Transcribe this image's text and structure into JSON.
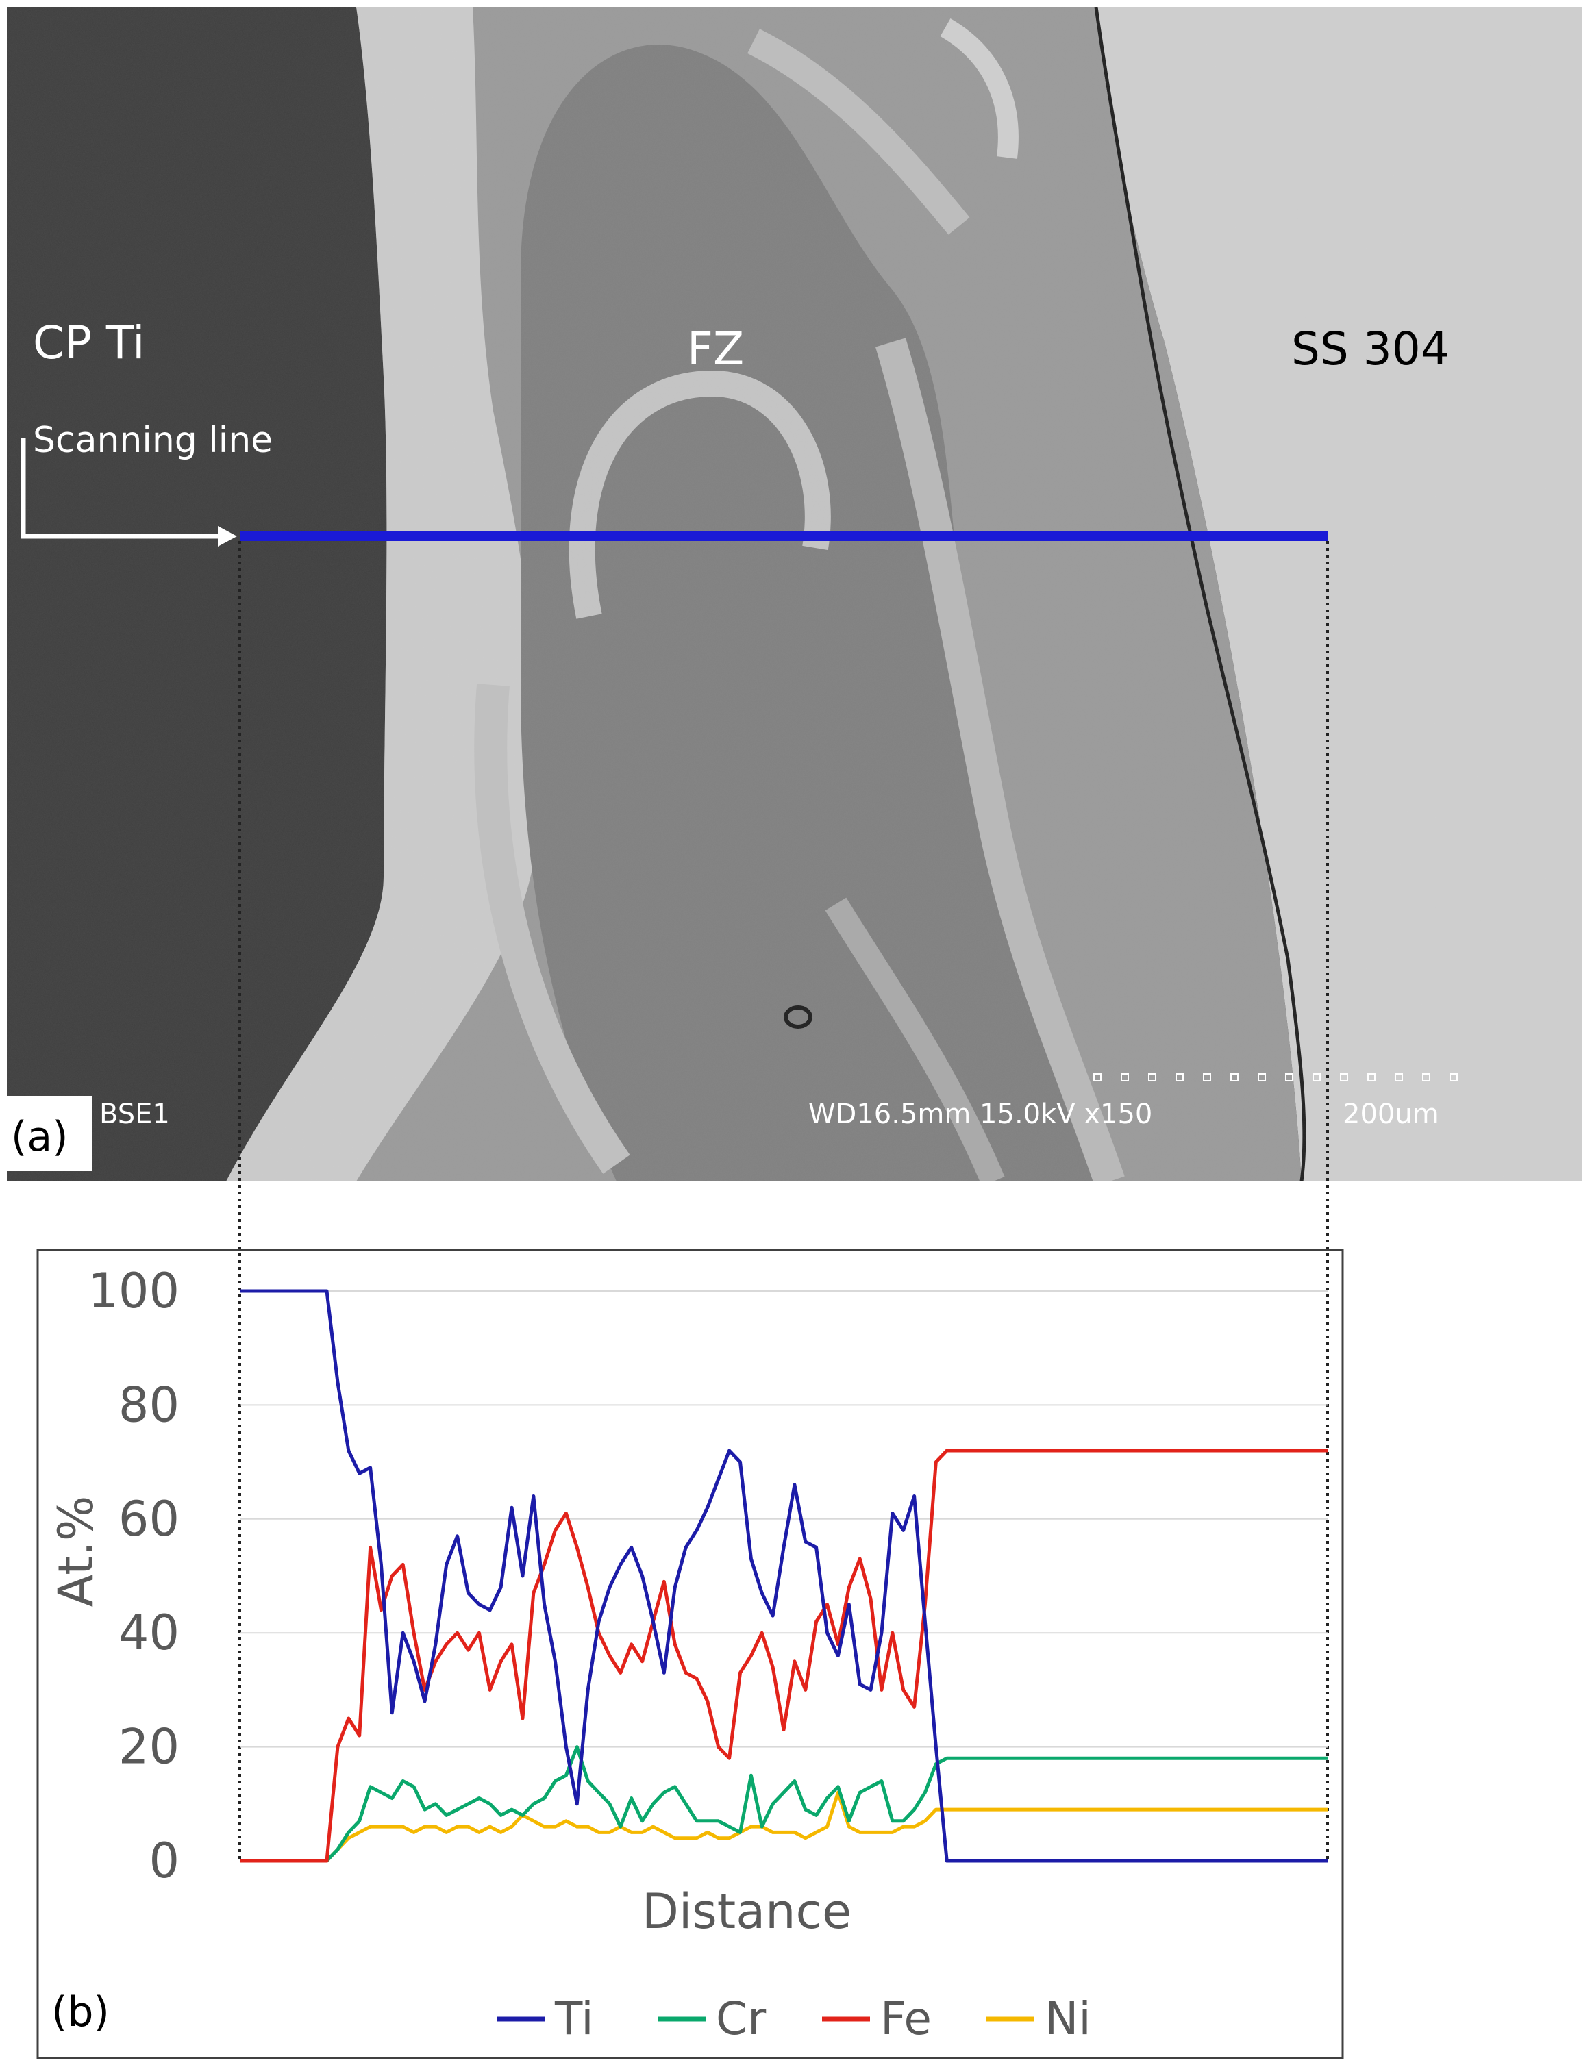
{
  "micrograph": {
    "panel_label": "(a)",
    "region_labels": [
      "CP Ti",
      "FZ",
      "SS 304"
    ],
    "scan_label": "Scanning line",
    "detector": "BSE1",
    "info_bar": "WD16.5mm 15.0kV x150",
    "scale_bar": "200um",
    "colors": {
      "scan_line": "#1a1ad6",
      "arrow": "#ffffff"
    }
  },
  "chart_data": {
    "type": "line",
    "panel_label": "(b)",
    "xlabel": "Distance",
    "ylabel": "At.%",
    "ylim": [
      0,
      100
    ],
    "yticks": [
      "0",
      "20",
      "40",
      "60",
      "80",
      "100"
    ],
    "grid": true,
    "legend_position": "bottom",
    "x": [
      0,
      2,
      4,
      6,
      8,
      9,
      10,
      11,
      12,
      13,
      14,
      15,
      16,
      17,
      18,
      19,
      20,
      21,
      22,
      23,
      24,
      25,
      26,
      27,
      28,
      29,
      30,
      31,
      32,
      33,
      34,
      35,
      36,
      37,
      38,
      39,
      40,
      41,
      42,
      43,
      44,
      45,
      46,
      47,
      48,
      49,
      50,
      51,
      52,
      53,
      54,
      55,
      56,
      57,
      58,
      59,
      60,
      61,
      62,
      63,
      64,
      65,
      66,
      67,
      68,
      69,
      70,
      71,
      72,
      73,
      74,
      75,
      76,
      77,
      78,
      79,
      80,
      81,
      82,
      83,
      84,
      85,
      86,
      87,
      88,
      89,
      90,
      91,
      92,
      93,
      94,
      95,
      96,
      97,
      98,
      99,
      100
    ],
    "series": [
      {
        "name": "Ti",
        "color": "#1c1ca8",
        "values": [
          100,
          100,
          100,
          100,
          100,
          84,
          72,
          68,
          69,
          52,
          26,
          40,
          35,
          28,
          38,
          52,
          57,
          47,
          45,
          44,
          48,
          62,
          50,
          64,
          45,
          35,
          20,
          10,
          30,
          42,
          48,
          52,
          55,
          50,
          42,
          33,
          48,
          55,
          58,
          62,
          67,
          72,
          70,
          53,
          47,
          43,
          55,
          66,
          56,
          55,
          40,
          36,
          45,
          31,
          30,
          40,
          61,
          58,
          64,
          42,
          20,
          0,
          0,
          0,
          0,
          0,
          0,
          0,
          0,
          0,
          0,
          0,
          0,
          0,
          0,
          0,
          0,
          0,
          0,
          0,
          0,
          0,
          0,
          0,
          0,
          0,
          0,
          0,
          0,
          0,
          0,
          0,
          0,
          0,
          0,
          0,
          0
        ]
      },
      {
        "name": "Cr",
        "color": "#0aa86c",
        "values": [
          0,
          0,
          0,
          0,
          0,
          2,
          5,
          7,
          13,
          12,
          11,
          14,
          13,
          9,
          10,
          8,
          9,
          10,
          11,
          10,
          8,
          9,
          8,
          10,
          11,
          14,
          15,
          20,
          14,
          12,
          10,
          6,
          11,
          7,
          10,
          12,
          13,
          10,
          7,
          7,
          7,
          6,
          5,
          15,
          6,
          10,
          12,
          14,
          9,
          8,
          11,
          13,
          7,
          12,
          13,
          14,
          7,
          7,
          9,
          12,
          17,
          18,
          18,
          18,
          18,
          18,
          18,
          18,
          18,
          18,
          18,
          18,
          18,
          18,
          18,
          18,
          18,
          18,
          18,
          18,
          18,
          18,
          18,
          18,
          18,
          18,
          18,
          18,
          18,
          18,
          18,
          18,
          18,
          18,
          18,
          18,
          18
        ]
      },
      {
        "name": "Fe",
        "color": "#e2231a",
        "values": [
          0,
          0,
          0,
          0,
          0,
          20,
          25,
          22,
          55,
          44,
          50,
          52,
          40,
          30,
          35,
          38,
          40,
          37,
          40,
          30,
          35,
          38,
          25,
          47,
          52,
          58,
          61,
          55,
          48,
          40,
          36,
          33,
          38,
          35,
          42,
          49,
          38,
          33,
          32,
          28,
          20,
          18,
          33,
          36,
          40,
          34,
          23,
          35,
          30,
          42,
          45,
          38,
          48,
          53,
          46,
          30,
          40,
          30,
          27,
          45,
          70,
          72,
          72,
          72,
          72,
          72,
          72,
          72,
          72,
          72,
          72,
          72,
          72,
          72,
          72,
          72,
          72,
          72,
          72,
          72,
          72,
          72,
          72,
          72,
          72,
          72,
          72,
          72,
          72,
          72,
          72,
          72,
          72,
          72,
          72,
          72,
          72
        ]
      },
      {
        "name": "Ni",
        "color": "#f5b800",
        "values": [
          0,
          0,
          0,
          0,
          0,
          2,
          4,
          5,
          6,
          6,
          6,
          6,
          5,
          6,
          6,
          5,
          6,
          6,
          5,
          6,
          5,
          6,
          8,
          7,
          6,
          6,
          7,
          6,
          6,
          5,
          5,
          6,
          5,
          5,
          6,
          5,
          4,
          4,
          4,
          5,
          4,
          4,
          5,
          6,
          6,
          5,
          5,
          5,
          4,
          5,
          6,
          12,
          6,
          5,
          5,
          5,
          5,
          6,
          6,
          7,
          9,
          9,
          9,
          9,
          9,
          9,
          9,
          9,
          9,
          9,
          9,
          9,
          9,
          9,
          9,
          9,
          9,
          9,
          9,
          9,
          9,
          9,
          9,
          9,
          9,
          9,
          9,
          9,
          9,
          9,
          9,
          9,
          9,
          9,
          9,
          9,
          9
        ]
      }
    ]
  }
}
